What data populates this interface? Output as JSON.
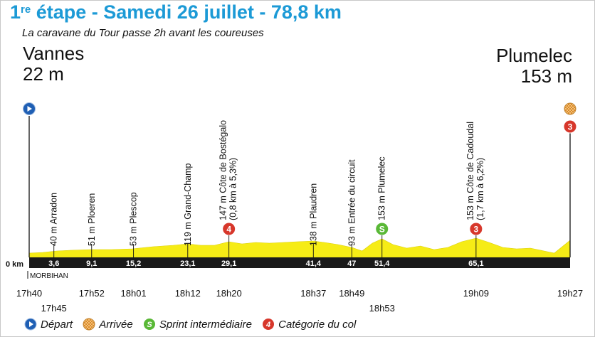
{
  "header": {
    "title_stage_num": "1",
    "title_stage_sup": "re",
    "title_rest": " étape - Samedi 26 juillet - 78,8 km",
    "subtitle": "La caravane du Tour passe 2h avant les coureuses"
  },
  "start": {
    "name": "Vannes",
    "altitude": "22 m"
  },
  "finish": {
    "name": "Plumelec",
    "altitude": "153 m"
  },
  "baseline_label": "0 km",
  "department": "MORBIHAN",
  "waypoints": [
    {
      "km": 3.6,
      "km_label": "3,6",
      "label": "40 m Arradon",
      "time": "17h45",
      "time_row": 2
    },
    {
      "km": 9.1,
      "km_label": "9,1",
      "label": "51 m Ploeren",
      "time": "17h52",
      "time_row": 1
    },
    {
      "km": 15.2,
      "km_label": "15,2",
      "label": "53 m Plescop",
      "time": "18h01",
      "time_row": 1
    },
    {
      "km": 23.1,
      "km_label": "23,1",
      "label": "119 m Grand-Champ",
      "time": "18h12",
      "time_row": 1
    },
    {
      "km": 29.1,
      "km_label": "29,1",
      "label": "147 m Côte de Bostégalo",
      "label2": "(0,8 km à 5,3%)",
      "time": "18h20",
      "time_row": 1,
      "badge": "4",
      "badge_type": "climb"
    },
    {
      "km": 41.4,
      "km_label": "41,4",
      "label": "138 m Plaudren",
      "time": "18h37",
      "time_row": 1
    },
    {
      "km": 47,
      "km_label": "47",
      "label": "93 m Entrée du circuit",
      "time": "18h49",
      "time_row": 1
    },
    {
      "km": 51.4,
      "km_label": "51,4",
      "label": "153 m Plumelec",
      "time": "18h53",
      "time_row": 2,
      "badge": "S",
      "badge_type": "sprint"
    },
    {
      "km": 65.1,
      "km_label": "65,1",
      "label": "153 m Côte de Cadoudal",
      "label2": "(1,7 km à 6,2%)",
      "time": "19h09",
      "time_row": 1,
      "badge": "3",
      "badge_type": "climb"
    }
  ],
  "start_time": "17h40",
  "finish_time": "19h27",
  "total_km": 78.8,
  "finish_badge": "3",
  "legend": {
    "depart": "Départ",
    "arrivee": "Arrivée",
    "sprint": "Sprint intermédiaire",
    "sprint_icon": "S",
    "categorie": "Catégorie du col",
    "categorie_icon": "4"
  },
  "colors": {
    "title": "#1c9ad6",
    "profile_fill": "#f6ec16",
    "ground": "#1a1a1a",
    "depart": "#1f5fb4",
    "sprint": "#59b836",
    "climb": "#d7372b"
  }
}
